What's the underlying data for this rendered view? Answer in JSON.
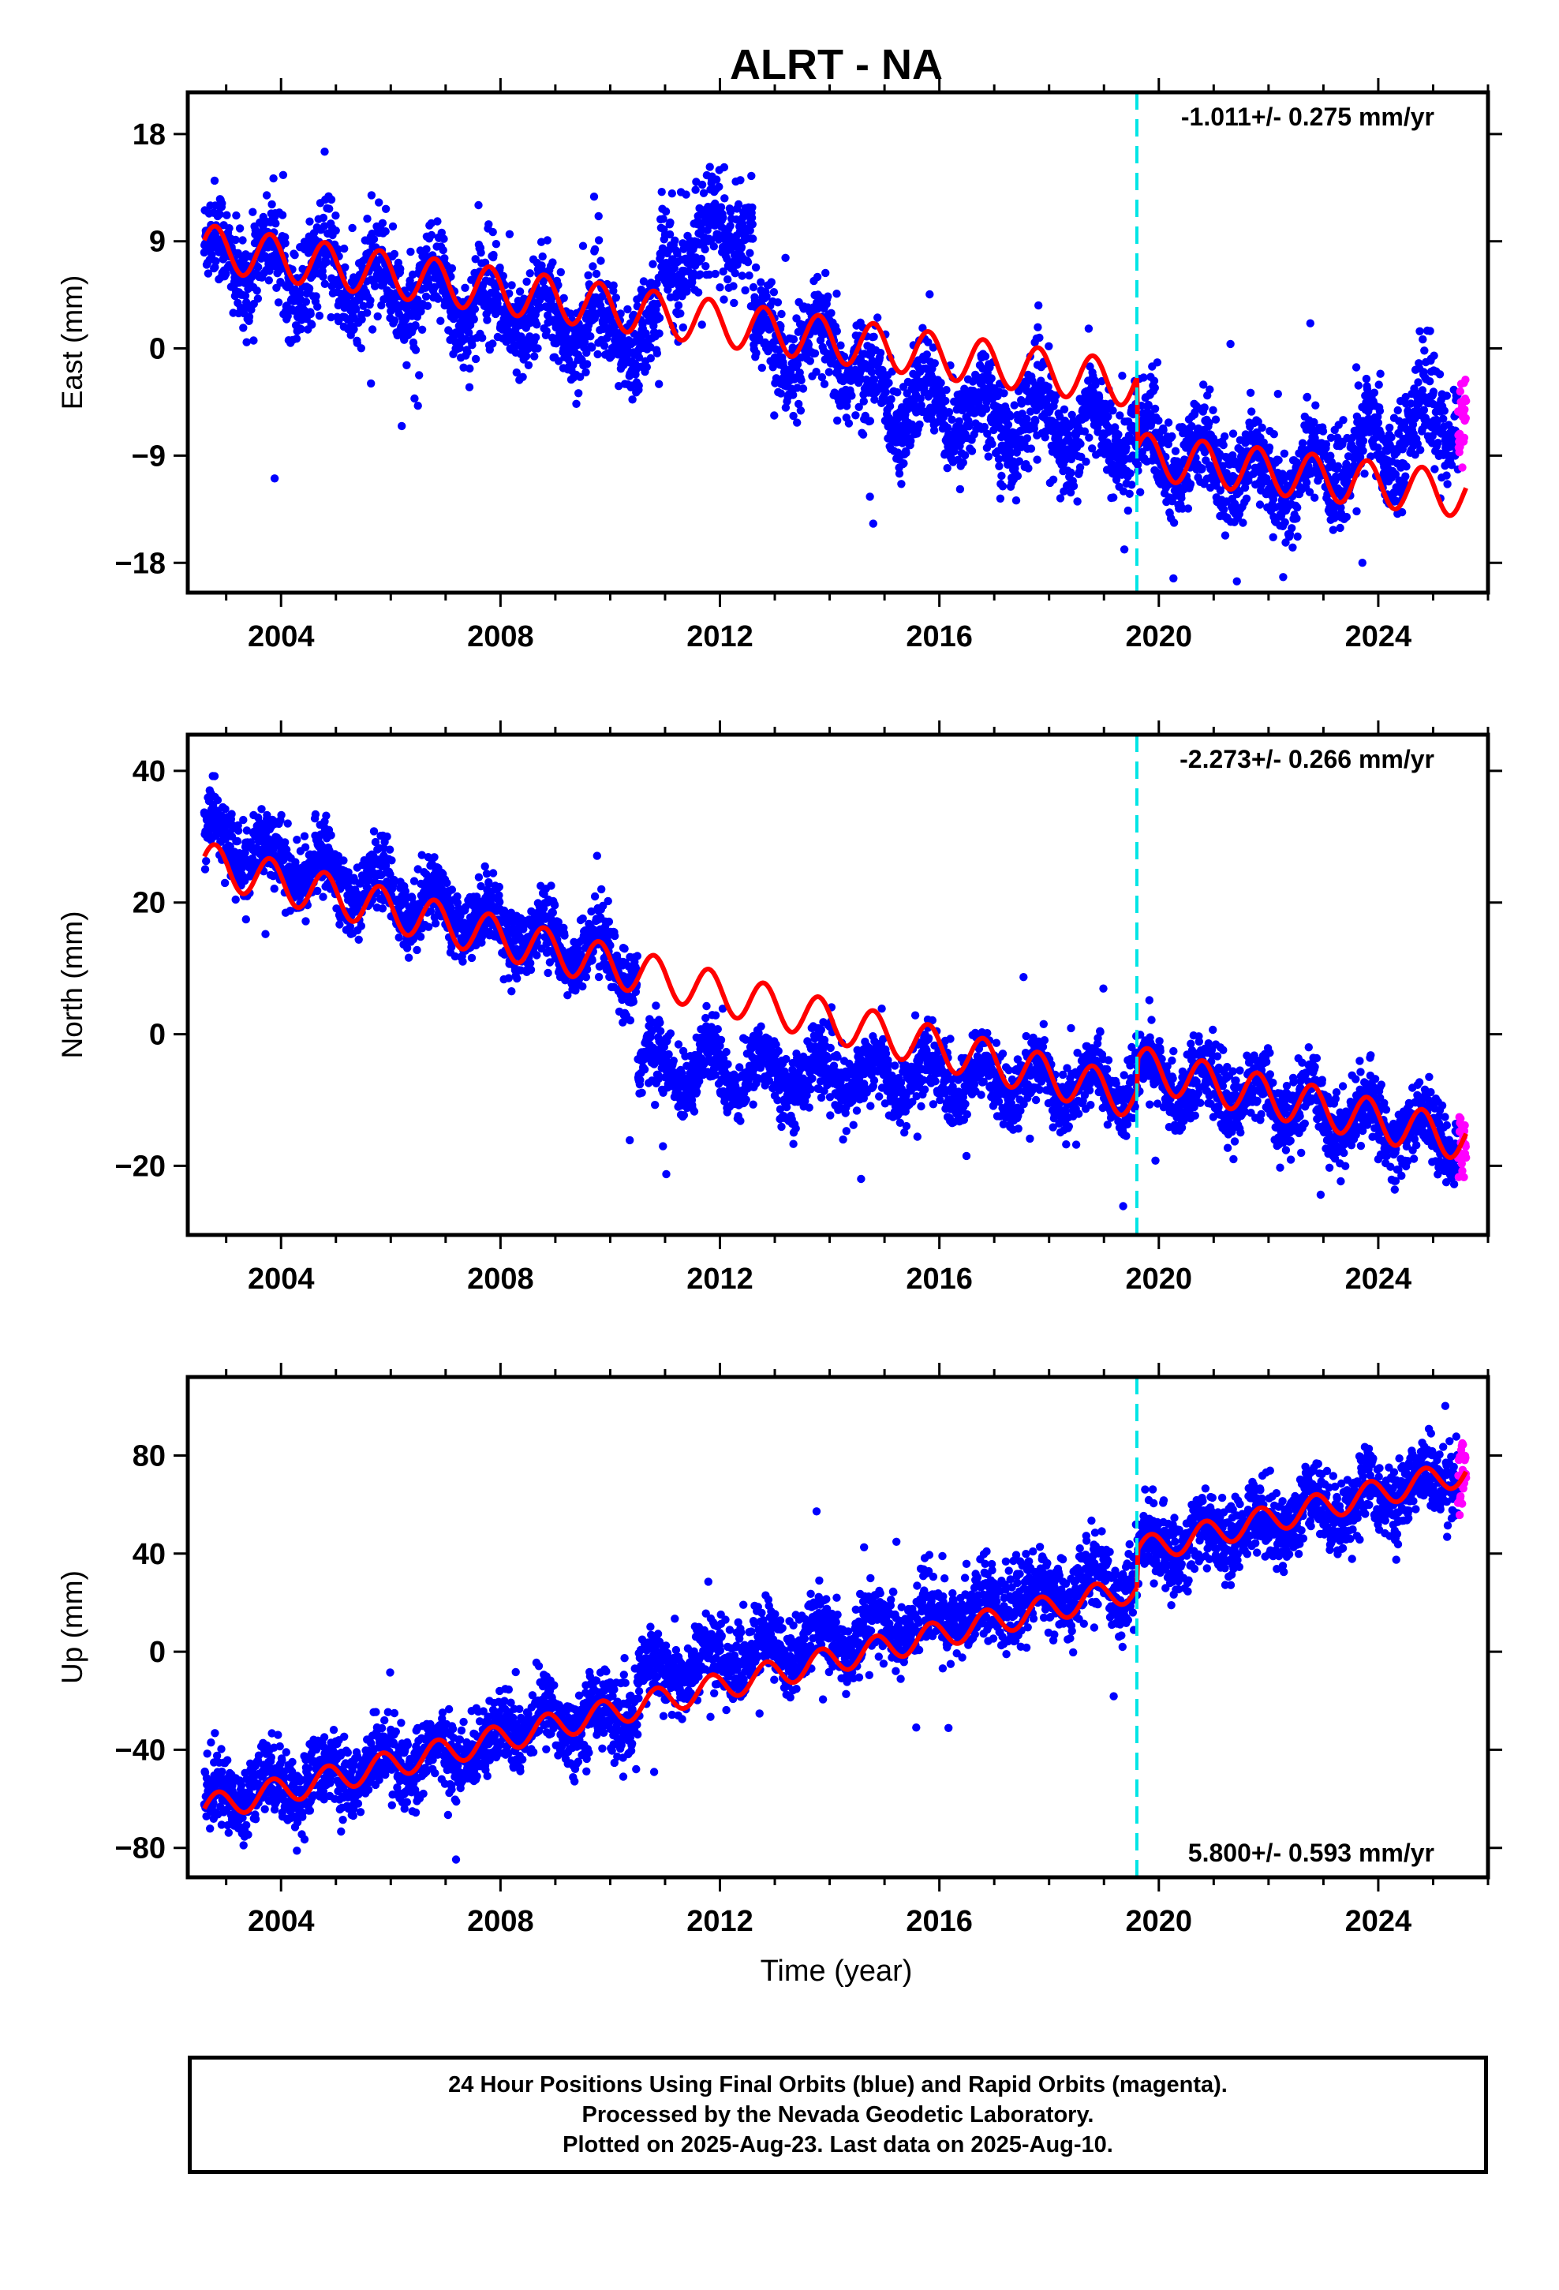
{
  "title": "ALRT - NA",
  "xlabel": "Time (year)",
  "footer": {
    "line1": "24 Hour Positions Using Final Orbits (blue) and Rapid Orbits (magenta).",
    "line2": "Processed by the Nevada Geodetic Laboratory.",
    "line3": "Plotted on 2025-Aug-23. Last data on 2025-Aug-10."
  },
  "colors": {
    "final_orbits": "#0000ff",
    "rapid_orbits": "#ff00ff",
    "model": "#ff0000",
    "event_line": "#00e5e5"
  },
  "chart_data": [
    {
      "type": "scatter",
      "component": "east",
      "ylabel": "East (mm)",
      "xlim": [
        2002.3,
        2026.0
      ],
      "ylim": [
        -20.5,
        21.5
      ],
      "x_ticks": [
        2004,
        2008,
        2012,
        2016,
        2020,
        2024
      ],
      "y_ticks": [
        -18,
        -9,
        0,
        9,
        18
      ],
      "event_line_x": 2019.6,
      "rate_text": "-1.011+/- 0.275 mm/yr",
      "rate_position": "top-right",
      "data_start": 2002.6,
      "data_end": 2025.6,
      "rapid_orbits_start": 2025.45,
      "model": {
        "segments": [
          {
            "x0": 2002.6,
            "x1": 2019.6,
            "y0": 8.5,
            "slope": -0.68
          },
          {
            "x0": 2019.6,
            "x1": 2025.6,
            "y0": -9.0,
            "slope": -0.55
          }
        ],
        "annual_amplitude": 1.9,
        "phase_year": 0.55
      },
      "point_trend": {
        "segments": [
          {
            "x0": 2002.6,
            "x1": 2010.9,
            "y0": 8.0,
            "y1": 1.0
          },
          {
            "x0": 2010.9,
            "x1": 2012.6,
            "y0": 7.0,
            "y1": 11.0
          },
          {
            "x0": 2012.6,
            "x1": 2014.6,
            "y0": 0.5,
            "y1": -1.0
          },
          {
            "x0": 2014.6,
            "x1": 2019.6,
            "y0": -4.0,
            "y1": -7.5
          },
          {
            "x0": 2019.6,
            "x1": 2022.5,
            "y0": -8.5,
            "y1": -11.0
          },
          {
            "x0": 2022.5,
            "x1": 2025.6,
            "y0": -11.0,
            "y1": -5.0
          }
        ],
        "annual_amplitude": 2.2,
        "scatter_sd": 2.0
      }
    },
    {
      "type": "scatter",
      "component": "north",
      "ylabel": "North (mm)",
      "xlim": [
        2002.3,
        2026.0
      ],
      "ylim": [
        -30.5,
        45.5
      ],
      "x_ticks": [
        2004,
        2008,
        2012,
        2016,
        2020,
        2024
      ],
      "y_ticks": [
        -20,
        0,
        20,
        40
      ],
      "event_line_x": 2019.6,
      "rate_text": "-2.273+/- 0.266 mm/yr",
      "rate_position": "top-right",
      "data_start": 2002.6,
      "data_end": 2025.6,
      "rapid_orbits_start": 2025.45,
      "model": {
        "segments": [
          {
            "x0": 2002.6,
            "x1": 2019.6,
            "y0": 26.0,
            "slope": -2.1
          },
          {
            "x0": 2019.6,
            "x1": 2025.6,
            "y0": -5.0,
            "slope": -1.85
          }
        ],
        "annual_amplitude": 3.2,
        "phase_year": 0.55
      },
      "point_trend": {
        "segments": [
          {
            "x0": 2002.6,
            "x1": 2010.5,
            "y0": 30.0,
            "y1": 10.0
          },
          {
            "x0": 2010.5,
            "x1": 2019.6,
            "y0": -5.0,
            "y1": -8.0
          },
          {
            "x0": 2019.6,
            "x1": 2025.6,
            "y0": -6.0,
            "y1": -16.0
          }
        ],
        "annual_amplitude": 3.0,
        "scatter_sd": 2.6
      }
    },
    {
      "type": "scatter",
      "component": "up",
      "ylabel": "Up (mm)",
      "xlim": [
        2002.3,
        2026.0
      ],
      "ylim": [
        -92,
        112
      ],
      "x_ticks": [
        2004,
        2008,
        2012,
        2016,
        2020,
        2024
      ],
      "y_ticks": [
        -80,
        -40,
        0,
        40,
        80
      ],
      "event_line_x": 2019.6,
      "rate_text": "5.800+/- 0.593 mm/yr",
      "rate_position": "bottom-right",
      "data_start": 2002.6,
      "data_end": 2025.6,
      "rapid_orbits_start": 2025.45,
      "model": {
        "segments": [
          {
            "x0": 2002.6,
            "x1": 2019.6,
            "y0": -64.0,
            "slope": 5.3
          },
          {
            "x0": 2019.6,
            "x1": 2025.6,
            "y0": 41.0,
            "slope": 5.4
          }
        ],
        "annual_amplitude": 5.5,
        "phase_year": 0.6
      },
      "point_trend": {
        "segments": [
          {
            "x0": 2002.6,
            "x1": 2008.0,
            "y0": -60.0,
            "y1": -38.0
          },
          {
            "x0": 2008.0,
            "x1": 2010.5,
            "y0": -30.0,
            "y1": -25.0
          },
          {
            "x0": 2010.5,
            "x1": 2019.6,
            "y0": -10.0,
            "y1": 30.0
          },
          {
            "x0": 2019.6,
            "x1": 2025.6,
            "y0": 40.0,
            "y1": 72.0
          }
        ],
        "annual_amplitude": 6.0,
        "scatter_sd": 7.5
      }
    }
  ]
}
